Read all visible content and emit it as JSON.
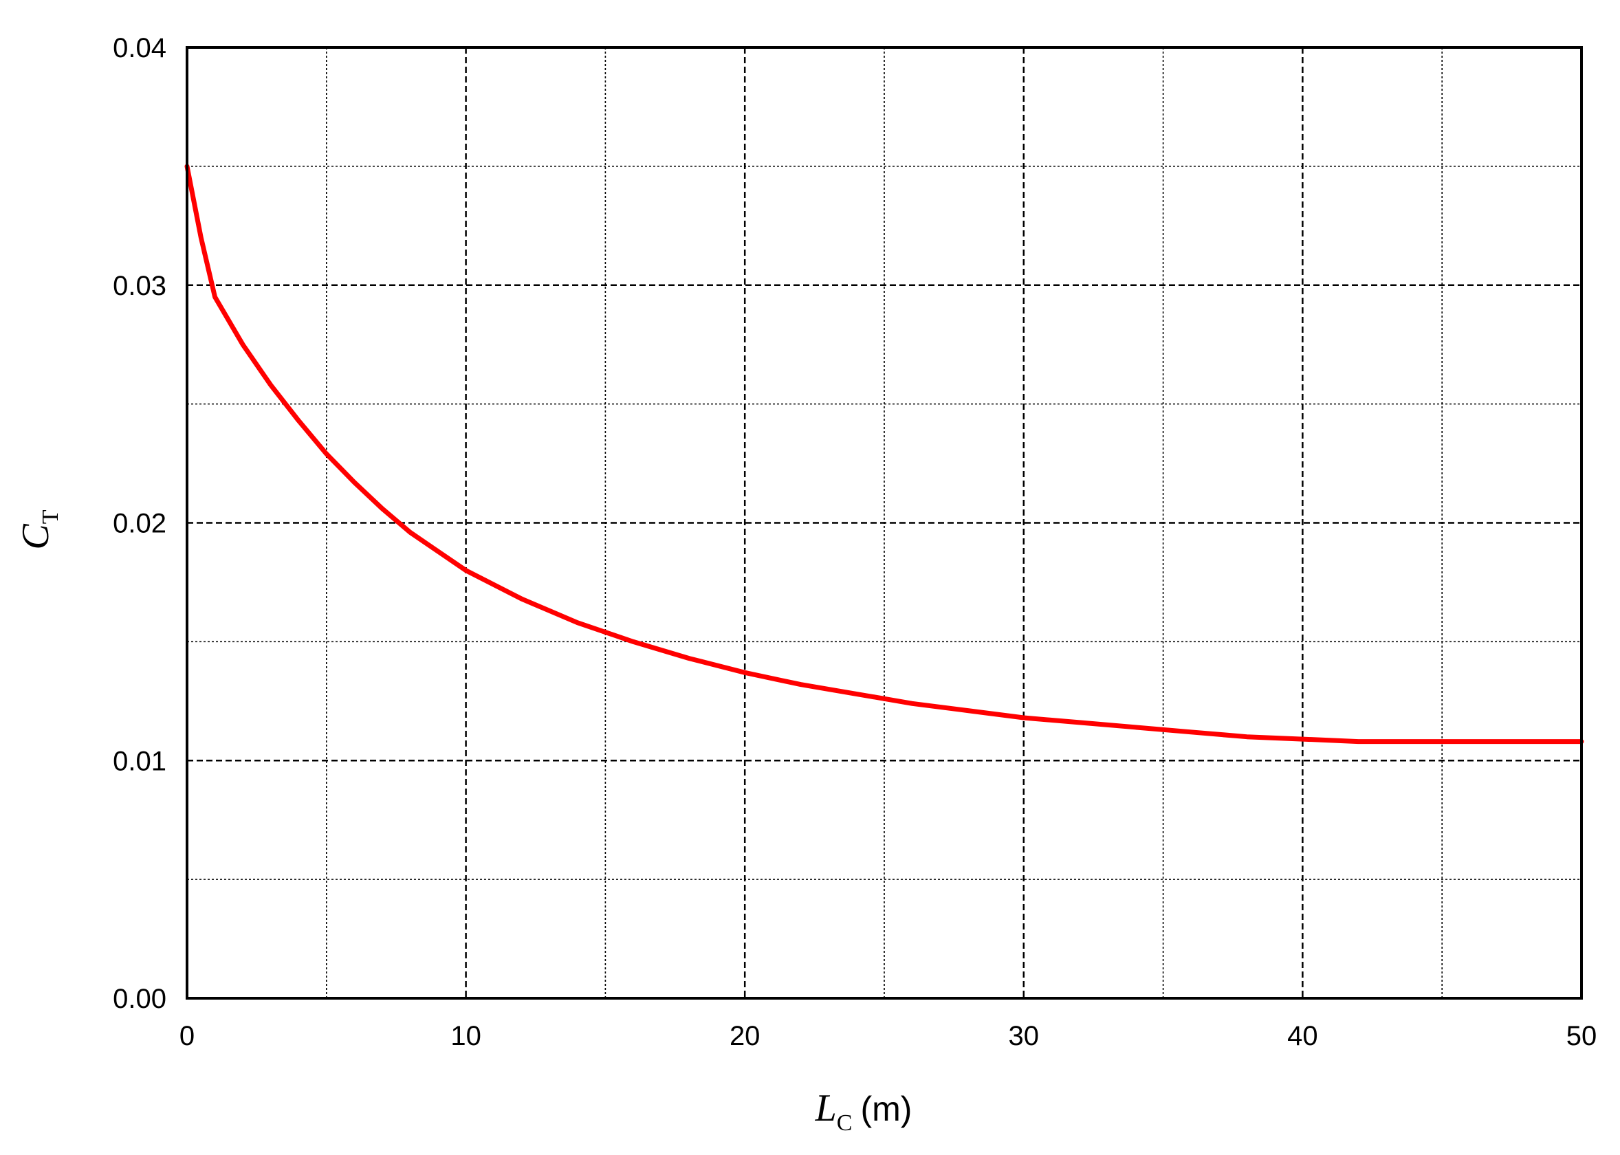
{
  "chart_data": {
    "type": "line",
    "title": "",
    "xlabel": {
      "symbol": "L",
      "subscript": "C",
      "unit": "(m)"
    },
    "ylabel": {
      "symbol": "C",
      "subscript": "T"
    },
    "xlim": [
      0,
      50
    ],
    "ylim": [
      0,
      0.04
    ],
    "x_ticks": [
      0,
      10,
      20,
      30,
      40,
      50
    ],
    "x_tick_labels": [
      "0",
      "10",
      "20",
      "30",
      "40",
      "50"
    ],
    "y_ticks": [
      0,
      0.01,
      0.02,
      0.03,
      0.04
    ],
    "y_tick_labels": [
      "0.00",
      "0.01",
      "0.02",
      "0.03",
      "0.04"
    ],
    "grid": {
      "major": "dashed",
      "minor": "dotted",
      "x_step": 5,
      "y_step": 0.005
    },
    "legend": "none",
    "series": [
      {
        "color": "#ff0000",
        "x": [
          0,
          0.5,
          1,
          2,
          3,
          4,
          5,
          6,
          7,
          8,
          9,
          10,
          12,
          14,
          16,
          18,
          20,
          22,
          24,
          26,
          28,
          30,
          32,
          34,
          36,
          38,
          40,
          42,
          44,
          46,
          48,
          50
        ],
        "y": [
          0.035,
          0.032,
          0.0295,
          0.0275,
          0.0258,
          0.0243,
          0.0229,
          0.0217,
          0.0206,
          0.0196,
          0.0188,
          0.018,
          0.0168,
          0.0158,
          0.015,
          0.0143,
          0.0137,
          0.0132,
          0.0128,
          0.0124,
          0.0121,
          0.0118,
          0.0116,
          0.0114,
          0.0112,
          0.011,
          0.0109,
          0.0108,
          0.0108,
          0.0108,
          0.0108,
          0.0108
        ]
      }
    ]
  }
}
